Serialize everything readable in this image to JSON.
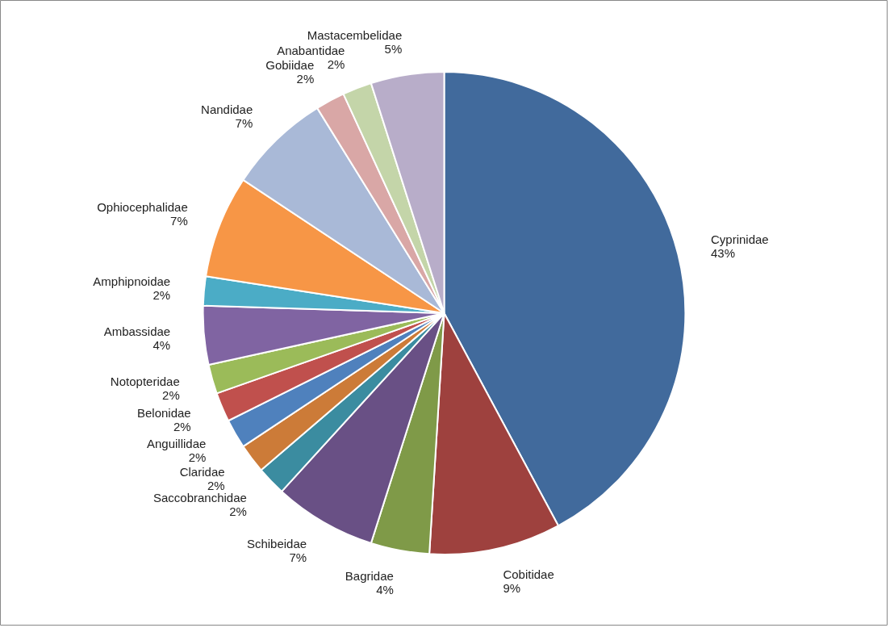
{
  "chart_data": {
    "type": "pie",
    "categories": [
      "Cyprinidae",
      "Cobitidae",
      "Bagridae",
      "Schibeidae",
      "Saccobranchidae",
      "Claridae",
      "Anguillidae",
      "Belonidae",
      "Notopteridae",
      "Ambassidae",
      "Amphipnoidae",
      "Ophiocephalidae",
      "Nandidae",
      "Gobiidae",
      "Anabantidae",
      "Mastacembelidae"
    ],
    "values": [
      43,
      9,
      4,
      7,
      2,
      2,
      2,
      2,
      2,
      4,
      2,
      7,
      7,
      2,
      2,
      5
    ],
    "value_labels": [
      "43%",
      "9%",
      "4%",
      "7%",
      "2%",
      "2%",
      "2%",
      "2%",
      "2%",
      "4%",
      "2%",
      "7%",
      "7%",
      "2%",
      "2%",
      "5%"
    ],
    "colors": [
      "#416a9c",
      "#9e413e",
      "#7f9a48",
      "#695085",
      "#3b8ca0",
      "#cc7b38",
      "#4f81bd",
      "#c0504d",
      "#9bbb59",
      "#8064a2",
      "#4bacc6",
      "#f79646",
      "#a9b9d7",
      "#d9a7a6",
      "#c4d5a9",
      "#b8adc9"
    ]
  }
}
